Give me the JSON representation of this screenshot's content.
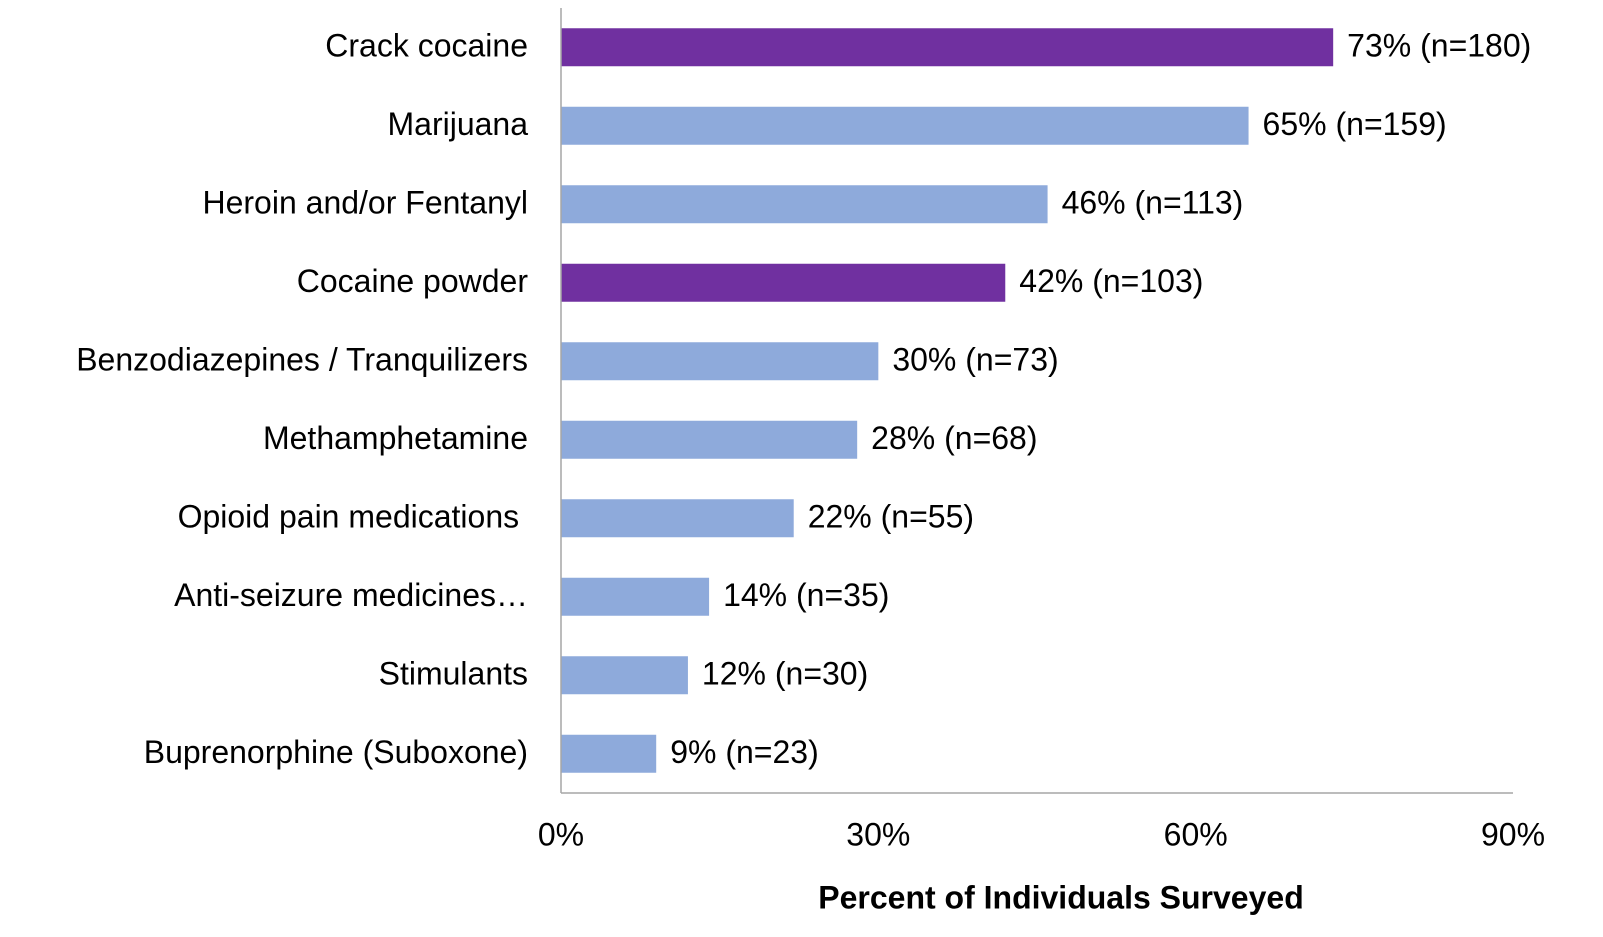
{
  "chart_data": {
    "type": "hbar",
    "categories": [
      "Crack cocaine",
      "Marijuana",
      "Heroin and/or Fentanyl",
      "Cocaine powder",
      "Benzodiazepines / Tranquilizers",
      "Methamphetamine",
      "Opioid pain medications ",
      "Anti-seizure medicines…",
      "Stimulants",
      "Buprenorphine (Suboxone)"
    ],
    "values": [
      73,
      65,
      46,
      42,
      30,
      28,
      22,
      14,
      12,
      9
    ],
    "value_labels": [
      "73% (n=180)",
      "65% (n=159)",
      "46% (n=113)",
      "42% (n=103)",
      "30% (n=73)",
      "28% (n=68)",
      "22% (n=55)",
      "14% (n=35)",
      "12% (n=30)",
      "9% (n=23)"
    ],
    "colors": [
      "#7030a0",
      "#8eaadb",
      "#8eaadb",
      "#7030a0",
      "#8eaadb",
      "#8eaadb",
      "#8eaadb",
      "#8eaadb",
      "#8eaadb",
      "#8eaadb"
    ],
    "xlabel": "Percent of Individuals Surveyed",
    "xlim": [
      0,
      90
    ],
    "xticks": [
      {
        "value": 0,
        "label": "0%"
      },
      {
        "value": 30,
        "label": "30%"
      },
      {
        "value": 60,
        "label": "60%"
      },
      {
        "value": 90,
        "label": "90%"
      }
    ],
    "grid": false
  }
}
